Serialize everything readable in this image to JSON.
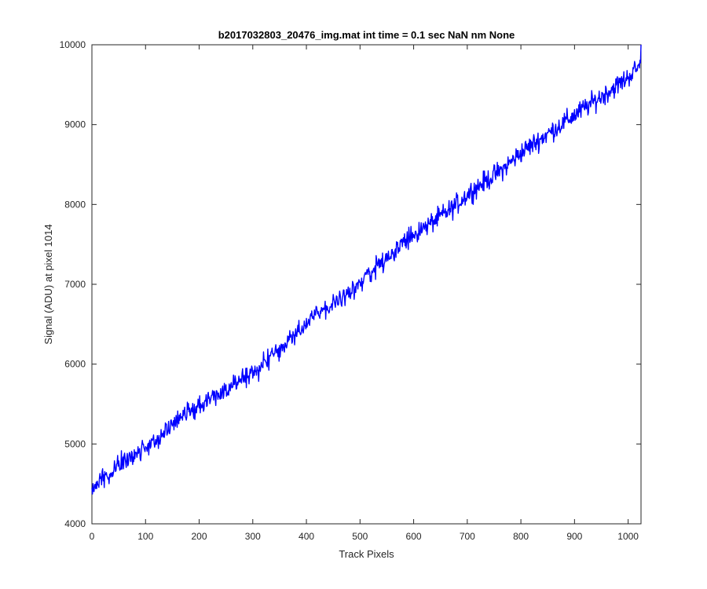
{
  "chart_data": {
    "type": "line",
    "title": "b2017032803_20476_img.mat int time = 0.1 sec  NaN nm None",
    "xlabel": "Track Pixels",
    "ylabel": "Signal (ADU) at pixel 1014",
    "xlim": [
      0,
      1024
    ],
    "ylim": [
      4000,
      10000
    ],
    "xticks": [
      0,
      100,
      200,
      300,
      400,
      500,
      600,
      700,
      800,
      900,
      1000
    ],
    "yticks": [
      4000,
      5000,
      6000,
      7000,
      8000,
      9000,
      10000
    ],
    "grid": false,
    "series": [
      {
        "color": "#0000ff",
        "x": [
          0,
          32,
          64,
          96,
          128,
          160,
          192,
          224,
          256,
          288,
          320,
          352,
          384,
          416,
          448,
          480,
          512,
          544,
          576,
          608,
          640,
          672,
          704,
          736,
          768,
          800,
          832,
          864,
          896,
          928,
          960,
          992,
          1024
        ],
        "y": [
          4450,
          4650,
          4800,
          4950,
          5100,
          5300,
          5450,
          5600,
          5700,
          5850,
          6000,
          6200,
          6400,
          6600,
          6750,
          6900,
          7100,
          7300,
          7500,
          7650,
          7800,
          7950,
          8150,
          8300,
          8450,
          8650,
          8800,
          8950,
          9100,
          9250,
          9400,
          9550,
          9750
        ],
        "noise_amplitude": 120
      }
    ]
  }
}
